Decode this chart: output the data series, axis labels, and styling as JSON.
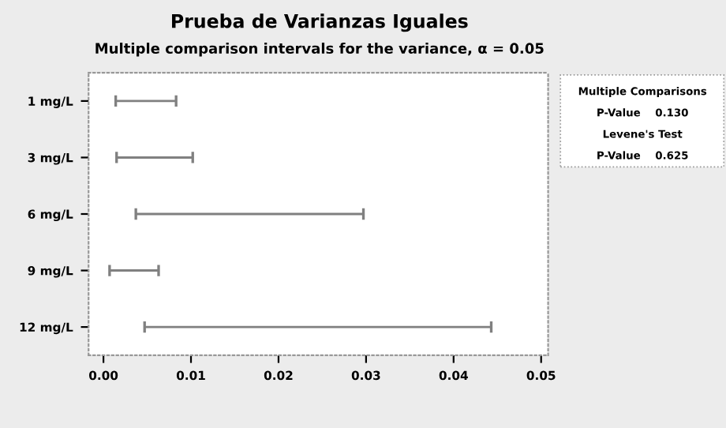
{
  "chart_data": {
    "type": "bar",
    "orientation": "horizontal",
    "title": "Prueba de Varianzas Iguales",
    "subtitle": "Multiple comparison intervals for the variance, α = 0.05",
    "categories": [
      "1 mg/L",
      "3 mg/L",
      "6 mg/L",
      "9 mg/L",
      "12 mg/L"
    ],
    "base": [
      0.0014,
      0.0015,
      0.0037,
      0.0007,
      0.0047
    ],
    "values": [
      0.0069,
      0.0087,
      0.026,
      0.0056,
      0.0396
    ],
    "color": "#808080",
    "xlim": [
      -0.0017,
      0.0508
    ],
    "xticks": [
      {
        "value": 0,
        "label": "0.00"
      },
      0.01,
      0.02,
      0.03,
      0.04,
      0.05
    ],
    "grid": false,
    "annotations": [
      "Multiple Comparisons",
      "P-Value    0.130",
      "Levene's Test",
      "P-Value    0.625"
    ]
  }
}
